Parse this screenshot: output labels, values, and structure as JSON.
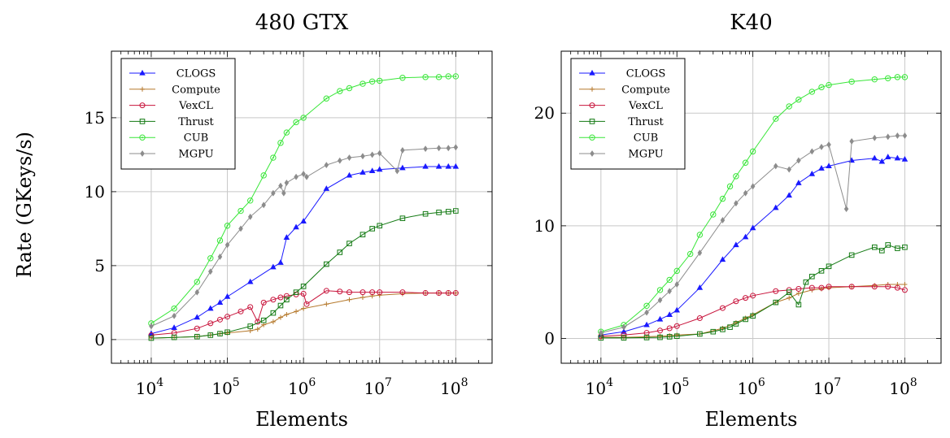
{
  "ylabel_shared": "Rate (GKeys/s)",
  "series_styles": [
    {
      "name": "CLOGS",
      "color": "#1a1aff",
      "marker": "triangle"
    },
    {
      "name": "Compute",
      "color": "#b5792c",
      "marker": "plus"
    },
    {
      "name": "VexCL",
      "color": "#c8143c",
      "marker": "circle"
    },
    {
      "name": "Thrust",
      "color": "#137a13",
      "marker": "square"
    },
    {
      "name": "CUB",
      "color": "#39e639",
      "marker": "circle-dot"
    },
    {
      "name": "MGPU",
      "color": "#8c8c8c",
      "marker": "diamond"
    }
  ],
  "chart_data": [
    {
      "type": "line",
      "title": "480 GTX",
      "xlabel": "Elements",
      "ylabel": "Rate (GKeys/s)",
      "xscale": "log",
      "xlim": [
        3000,
        300000000
      ],
      "ylim": [
        -1.6,
        19.5
      ],
      "xticks": [
        "10^4",
        "10^5",
        "10^6",
        "10^7",
        "10^8"
      ],
      "yticks": [
        0,
        5,
        10,
        15
      ],
      "grid": true,
      "legend": "top-left",
      "series": [
        {
          "name": "CLOGS",
          "x": [
            10000,
            20000,
            40000,
            60000,
            80000,
            100000,
            200000,
            400000,
            500000,
            600000,
            800000,
            1000000,
            2000000,
            4000000,
            6000000,
            8000000,
            10000000,
            20000000,
            40000000,
            60000000,
            80000000,
            100000000
          ],
          "y": [
            0.4,
            0.8,
            1.5,
            2.1,
            2.5,
            2.9,
            3.9,
            4.9,
            5.2,
            6.9,
            7.6,
            8.0,
            10.2,
            11.1,
            11.3,
            11.4,
            11.5,
            11.6,
            11.7,
            11.7,
            11.7,
            11.7
          ]
        },
        {
          "name": "Compute",
          "x": [
            10000,
            20000,
            40000,
            60000,
            80000,
            100000,
            200000,
            250000,
            300000,
            400000,
            500000,
            600000,
            800000,
            1000000,
            2000000,
            4000000,
            6000000,
            8000000,
            10000000,
            20000000,
            40000000,
            60000000,
            80000000,
            100000000
          ],
          "y": [
            0.1,
            0.15,
            0.2,
            0.3,
            0.4,
            0.45,
            0.6,
            0.7,
            1.0,
            1.2,
            1.5,
            1.7,
            1.9,
            2.1,
            2.4,
            2.7,
            2.85,
            2.95,
            3.0,
            3.1,
            3.15,
            3.15,
            3.15,
            3.15
          ]
        },
        {
          "name": "VexCL",
          "x": [
            10000,
            20000,
            40000,
            60000,
            80000,
            100000,
            150000,
            200000,
            250000,
            300000,
            400000,
            500000,
            600000,
            800000,
            1000000,
            1100000,
            2000000,
            3000000,
            4000000,
            6000000,
            8000000,
            10000000,
            20000000,
            40000000,
            60000000,
            80000000,
            100000000
          ],
          "y": [
            0.3,
            0.45,
            0.75,
            1.1,
            1.35,
            1.55,
            1.9,
            2.2,
            1.2,
            2.5,
            2.7,
            2.85,
            2.95,
            3.05,
            3.1,
            2.4,
            3.3,
            3.25,
            3.2,
            3.2,
            3.2,
            3.2,
            3.2,
            3.15,
            3.15,
            3.15,
            3.15
          ]
        },
        {
          "name": "Thrust",
          "x": [
            10000,
            20000,
            40000,
            60000,
            80000,
            100000,
            200000,
            300000,
            400000,
            500000,
            600000,
            800000,
            1000000,
            2000000,
            3000000,
            4000000,
            6000000,
            8000000,
            10000000,
            20000000,
            40000000,
            60000000,
            80000000,
            100000000
          ],
          "y": [
            0.1,
            0.15,
            0.2,
            0.3,
            0.4,
            0.5,
            0.9,
            1.3,
            1.8,
            2.3,
            2.7,
            3.2,
            3.6,
            5.1,
            5.9,
            6.5,
            7.1,
            7.5,
            7.7,
            8.2,
            8.5,
            8.6,
            8.65,
            8.7
          ]
        },
        {
          "name": "CUB",
          "x": [
            10000,
            20000,
            40000,
            60000,
            80000,
            100000,
            150000,
            200000,
            300000,
            400000,
            500000,
            600000,
            800000,
            1000000,
            2000000,
            3000000,
            4000000,
            6000000,
            8000000,
            10000000,
            20000000,
            40000000,
            60000000,
            80000000,
            100000000
          ],
          "y": [
            1.1,
            2.1,
            3.9,
            5.5,
            6.7,
            7.7,
            8.7,
            9.4,
            11.1,
            12.3,
            13.3,
            14.0,
            14.7,
            15.0,
            16.3,
            16.8,
            17.0,
            17.3,
            17.45,
            17.5,
            17.7,
            17.75,
            17.75,
            17.8,
            17.8
          ]
        },
        {
          "name": "MGPU",
          "x": [
            10000,
            20000,
            40000,
            60000,
            80000,
            100000,
            150000,
            200000,
            300000,
            400000,
            500000,
            550000,
            600000,
            800000,
            1000000,
            1100000,
            2000000,
            3000000,
            4000000,
            6000000,
            8000000,
            10000000,
            17000000,
            20000000,
            40000000,
            60000000,
            80000000,
            100000000
          ],
          "y": [
            0.9,
            1.6,
            3.2,
            4.6,
            5.6,
            6.4,
            7.5,
            8.3,
            9.1,
            9.9,
            10.4,
            9.9,
            10.6,
            11.0,
            11.2,
            11.0,
            11.8,
            12.1,
            12.3,
            12.4,
            12.5,
            12.6,
            11.4,
            12.8,
            12.9,
            12.95,
            12.95,
            13.0
          ]
        }
      ]
    },
    {
      "type": "line",
      "title": "K40",
      "xlabel": "Elements",
      "ylabel": "",
      "xscale": "log",
      "xlim": [
        3000,
        300000000
      ],
      "ylim": [
        -2.2,
        25.5
      ],
      "xticks": [
        "10^4",
        "10^5",
        "10^6",
        "10^7",
        "10^8"
      ],
      "yticks": [
        0,
        10,
        20
      ],
      "grid": true,
      "legend": "top-left",
      "series": [
        {
          "name": "CLOGS",
          "x": [
            10000,
            20000,
            40000,
            60000,
            80000,
            100000,
            200000,
            400000,
            600000,
            800000,
            1000000,
            2000000,
            3000000,
            4000000,
            6000000,
            8000000,
            10000000,
            20000000,
            40000000,
            50000000,
            60000000,
            80000000,
            100000000
          ],
          "y": [
            0.3,
            0.6,
            1.2,
            1.7,
            2.1,
            2.5,
            4.5,
            7.0,
            8.3,
            9.0,
            9.8,
            11.6,
            12.7,
            13.8,
            14.6,
            15.1,
            15.3,
            15.8,
            16.0,
            15.7,
            16.1,
            16.0,
            15.9
          ]
        },
        {
          "name": "Compute",
          "x": [
            10000,
            20000,
            40000,
            60000,
            80000,
            100000,
            200000,
            400000,
            600000,
            800000,
            1000000,
            2000000,
            3000000,
            4000000,
            6000000,
            8000000,
            10000000,
            20000000,
            40000000,
            60000000,
            80000000,
            100000000
          ],
          "y": [
            0.1,
            0.1,
            0.15,
            0.2,
            0.25,
            0.3,
            0.4,
            0.9,
            1.4,
            1.8,
            2.1,
            3.2,
            3.6,
            4.0,
            4.3,
            4.4,
            4.5,
            4.6,
            4.7,
            4.8,
            4.8,
            4.8
          ]
        },
        {
          "name": "VexCL",
          "x": [
            10000,
            20000,
            40000,
            60000,
            80000,
            100000,
            200000,
            400000,
            600000,
            800000,
            1000000,
            2000000,
            3000000,
            4000000,
            6000000,
            8000000,
            10000000,
            20000000,
            40000000,
            60000000,
            80000000,
            100000000
          ],
          "y": [
            0.2,
            0.3,
            0.5,
            0.7,
            0.9,
            1.1,
            1.8,
            2.7,
            3.3,
            3.6,
            3.8,
            4.2,
            4.3,
            4.4,
            4.5,
            4.5,
            4.6,
            4.6,
            4.6,
            4.6,
            4.5,
            4.3
          ]
        },
        {
          "name": "Thrust",
          "x": [
            10000,
            20000,
            40000,
            60000,
            80000,
            100000,
            200000,
            300000,
            400000,
            500000,
            600000,
            800000,
            1000000,
            2000000,
            3000000,
            4000000,
            5000000,
            6000000,
            8000000,
            10000000,
            20000000,
            40000000,
            50000000,
            60000000,
            80000000,
            100000000
          ],
          "y": [
            0.05,
            0.05,
            0.08,
            0.1,
            0.15,
            0.2,
            0.4,
            0.6,
            0.8,
            1.0,
            1.3,
            1.7,
            2.0,
            3.2,
            4.1,
            3.0,
            5.0,
            5.5,
            6.0,
            6.4,
            7.4,
            8.1,
            7.8,
            8.3,
            8.0,
            8.1
          ]
        },
        {
          "name": "CUB",
          "x": [
            10000,
            20000,
            40000,
            60000,
            80000,
            100000,
            150000,
            200000,
            300000,
            400000,
            500000,
            600000,
            800000,
            1000000,
            2000000,
            3000000,
            4000000,
            6000000,
            8000000,
            10000000,
            20000000,
            40000000,
            60000000,
            80000000,
            100000000
          ],
          "y": [
            0.6,
            1.2,
            2.9,
            4.3,
            5.2,
            6.0,
            7.5,
            9.2,
            11.0,
            12.4,
            13.5,
            14.4,
            15.6,
            16.6,
            19.5,
            20.6,
            21.2,
            21.9,
            22.3,
            22.5,
            22.8,
            23.0,
            23.1,
            23.2,
            23.2
          ]
        },
        {
          "name": "MGPU",
          "x": [
            10000,
            20000,
            40000,
            60000,
            80000,
            100000,
            200000,
            400000,
            600000,
            800000,
            1000000,
            2000000,
            3000000,
            4000000,
            6000000,
            8000000,
            10000000,
            17000000,
            20000000,
            40000000,
            60000000,
            80000000,
            100000000
          ],
          "y": [
            0.5,
            1.0,
            2.3,
            3.4,
            4.2,
            4.8,
            7.6,
            10.5,
            12.0,
            12.9,
            13.5,
            15.3,
            15.0,
            15.8,
            16.6,
            17.0,
            17.2,
            11.5,
            17.5,
            17.8,
            17.9,
            18.0,
            18.0
          ]
        }
      ]
    }
  ]
}
